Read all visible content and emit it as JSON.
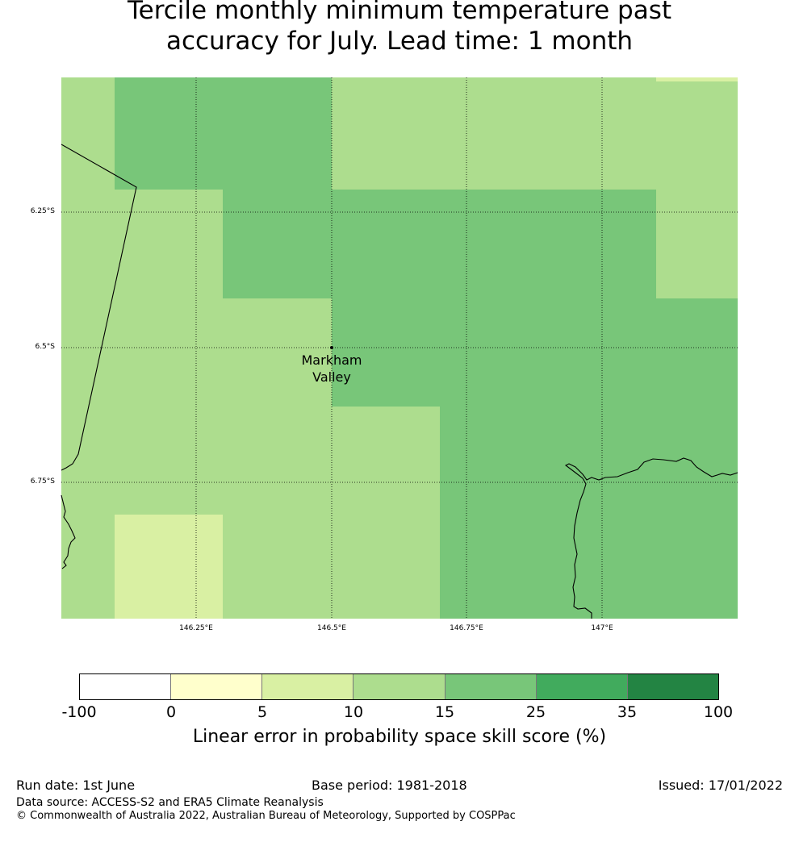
{
  "title": {
    "line1": "Tercile monthly minimum temperature past",
    "line2": "accuracy for July. Lead time: 1 month"
  },
  "map": {
    "lat_labels": [
      "6.25°S",
      "6.5°S",
      "6.75°S"
    ],
    "lon_labels": [
      "146.25°E",
      "146.5°E",
      "146.75°E",
      "147°E"
    ],
    "place": {
      "name_line1": "Markham",
      "name_line2": "Valley",
      "lon": 146.5,
      "lat": -6.5
    },
    "cell_colors": {
      "class_5_10": "#d9f0a3",
      "class_10_15": "#addd8e",
      "class_15_25": "#78c679"
    },
    "land_line_color": "#000000",
    "gridline_style": "dotted"
  },
  "colorbar": {
    "ticks": [
      "-100",
      "0",
      "5",
      "10",
      "15",
      "25",
      "35",
      "100"
    ],
    "colors": [
      "#ffffff",
      "#ffffcc",
      "#d9f0a3",
      "#addd8e",
      "#78c679",
      "#41ab5d",
      "#238443"
    ],
    "label": "Linear error in probability space skill score (%)"
  },
  "footer": {
    "run_date": "Run date: 1st June",
    "base_period": "Base period: 1981-2018",
    "issued": "Issued: 17/01/2022",
    "data_source": "Data source: ACCESS-S2 and ERA5 Climate Reanalysis",
    "copyright": "© Commonwealth of Australia 2022, Australian Bureau of Meteorology, Supported by COSPPac"
  }
}
